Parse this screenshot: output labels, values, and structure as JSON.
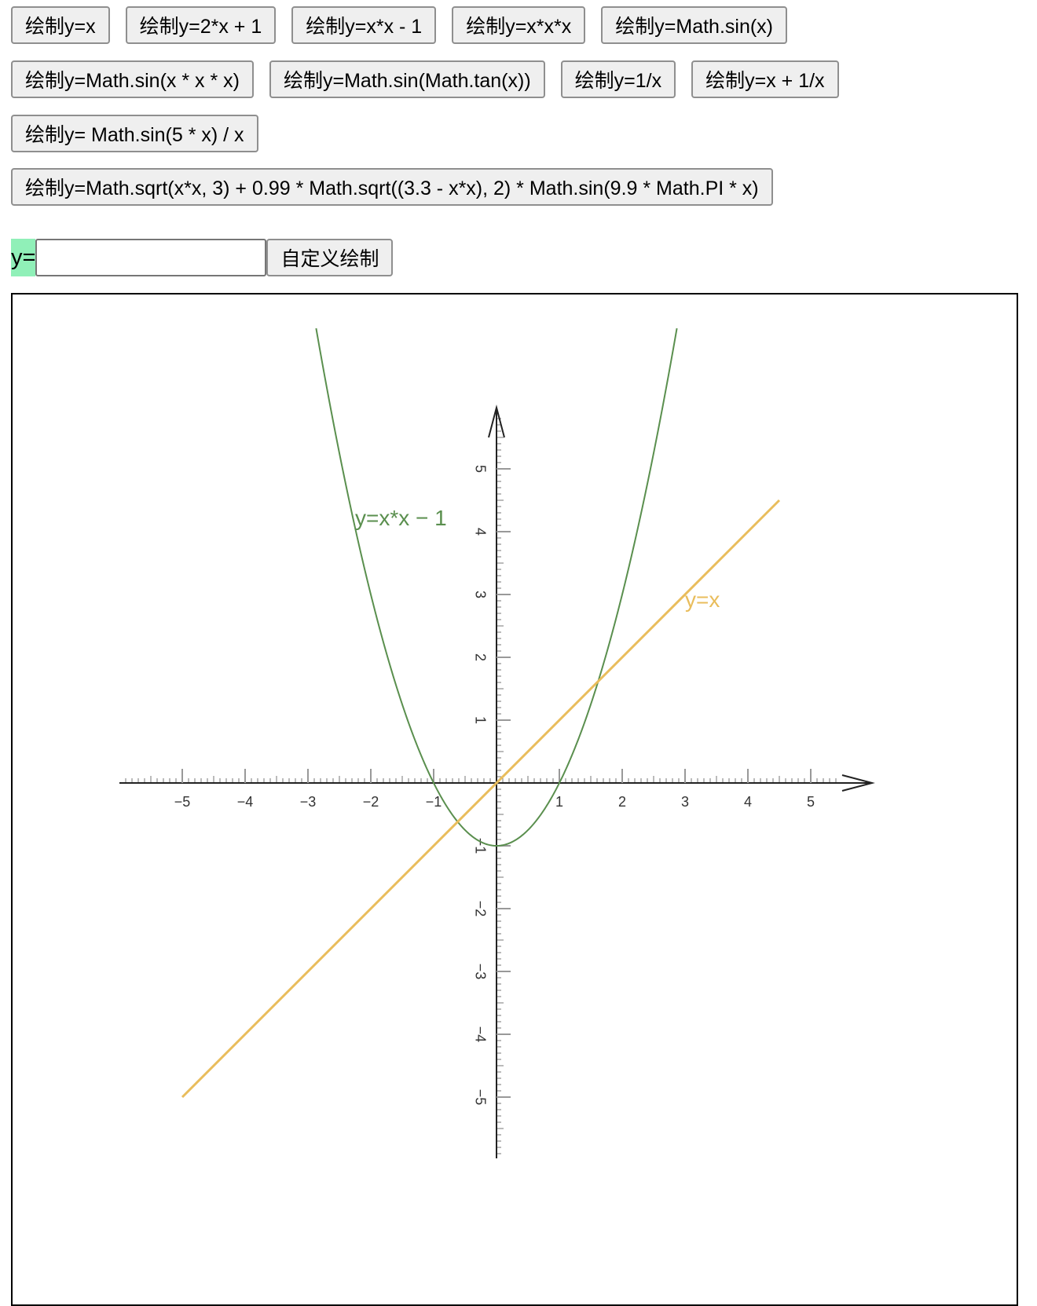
{
  "buttons": {
    "row1": [
      "绘制y=x",
      "绘制y=2*x + 1",
      "绘制y=x*x - 1",
      "绘制y=x*x*x",
      "绘制y=Math.sin(x)"
    ],
    "row2": [
      "绘制y=Math.sin(x * x * x)",
      "绘制y=Math.sin(Math.tan(x))",
      "绘制y=1/x",
      "绘制y=x + 1/x"
    ],
    "row3": [
      "绘制y= Math.sin(5 * x) / x"
    ],
    "row4": [
      "绘制y=Math.sqrt(x*x, 3) + 0.99 * Math.sqrt((3.3 - x*x), 2) * Math.sin(9.9 * Math.PI * x)"
    ]
  },
  "custom": {
    "label": "y=",
    "input_value": "",
    "input_placeholder": "",
    "button_label": "自定义绘制"
  },
  "chart_data": {
    "type": "line",
    "title": "",
    "xlabel": "",
    "ylabel": "",
    "xlim": [
      -5.5,
      5.5
    ],
    "ylim": [
      -5.5,
      5.5
    ],
    "x_ticks": [
      -5,
      -4,
      -3,
      -2,
      -1,
      1,
      2,
      3,
      4,
      5
    ],
    "y_ticks": [
      -5,
      -4,
      -3,
      -2,
      -1,
      1,
      2,
      3,
      4,
      5
    ],
    "grid": false,
    "series": [
      {
        "name": "y=x*x − 1",
        "color": "#5a8f4e",
        "x_range": [
          -2.87,
          2.87
        ],
        "y_max_visible": 7.2
      },
      {
        "name": "y=x",
        "color": "#e9bd5c",
        "x_range": [
          -5,
          4.5
        ]
      }
    ]
  }
}
